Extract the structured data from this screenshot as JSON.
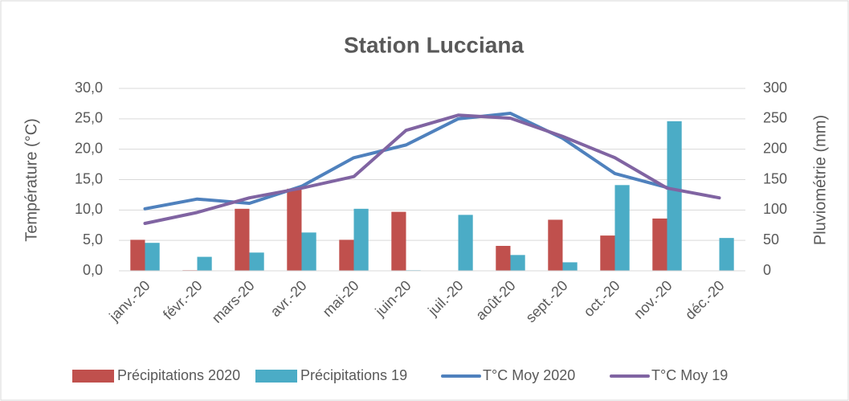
{
  "chart_data": {
    "type": "bar-line",
    "title": "Station Lucciana",
    "y_label": "Température (°C)",
    "y2_label": "Pluviométrie (mm)",
    "categories": [
      "janv.-20",
      "févr.-20",
      "mars-20",
      "avr.-20",
      "mai-20",
      "juin-20",
      "juil.-20",
      "août-20",
      "sept.-20",
      "oct.-20",
      "nov.-20",
      "déc.-20"
    ],
    "series": [
      {
        "name": "Précipitations 2020",
        "type": "bar",
        "axis": "y2",
        "color": "#c0504d",
        "values": [
          51,
          1,
          102,
          135,
          51,
          97,
          0,
          41,
          84,
          58,
          86,
          0
        ]
      },
      {
        "name": "Précipitations 19",
        "type": "bar",
        "axis": "y2",
        "color": "#4bacc6",
        "values": [
          46,
          23,
          30,
          63,
          102,
          1,
          92,
          26,
          14,
          141,
          246,
          54
        ]
      },
      {
        "name": "T°C Moy 2020",
        "type": "line",
        "axis": "y",
        "color": "#4f81bd",
        "values": [
          10.2,
          11.8,
          11.1,
          13.9,
          18.6,
          20.7,
          25.0,
          25.9,
          21.8,
          16.0,
          13.7,
          null
        ]
      },
      {
        "name": "T°C Moy 19",
        "type": "line",
        "axis": "y",
        "color": "#8064a2",
        "values": [
          7.8,
          9.6,
          12.0,
          13.6,
          15.5,
          23.1,
          25.6,
          25.1,
          22.1,
          18.6,
          13.6,
          12.0
        ]
      }
    ],
    "ylim": [
      0,
      30
    ],
    "yticks": [
      {
        "value": 0,
        "label": "0,0"
      },
      {
        "value": 5,
        "label": "5,0"
      },
      {
        "value": 10,
        "label": "10,0"
      },
      {
        "value": 15,
        "label": "15,0"
      },
      {
        "value": 20,
        "label": "20,0"
      },
      {
        "value": 25,
        "label": "25,0"
      },
      {
        "value": 30,
        "label": "30,0"
      }
    ],
    "y2lim": [
      0,
      300
    ],
    "y2ticks": [
      0,
      50,
      100,
      150,
      200,
      250,
      300
    ],
    "grid": true,
    "legend": "bottom"
  }
}
